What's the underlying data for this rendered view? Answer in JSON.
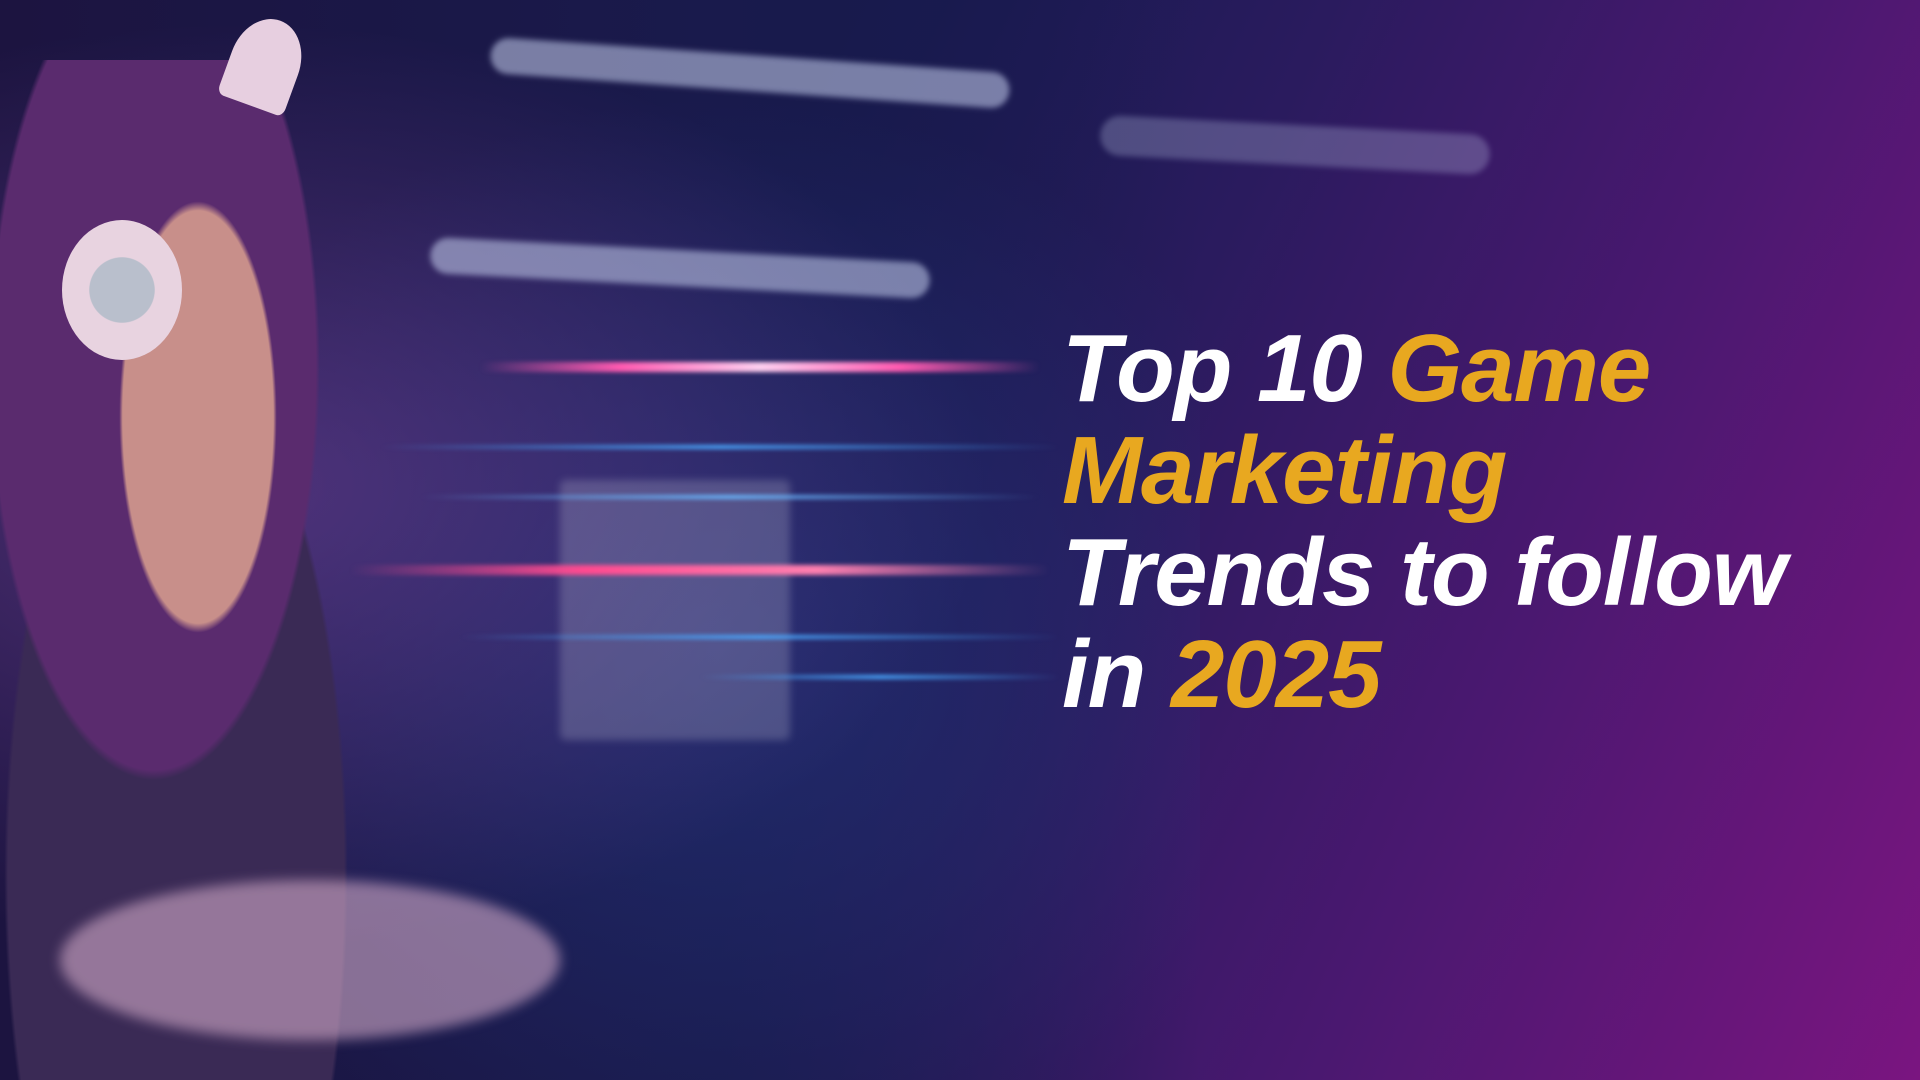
{
  "title": {
    "line1_white": "Top 10",
    "line1_gold": "Game",
    "line2_gold": "Marketing",
    "line3_white": "Trends to follow",
    "line4_white": "in",
    "line4_gold": "2025"
  },
  "colors": {
    "accent_gold": "#e8a820",
    "text_white": "#ffffff",
    "bg_dark": "#141a4e",
    "bg_magenta": "#7a1580"
  },
  "image": {
    "subject": "gamer-with-cat-ear-headphones"
  }
}
